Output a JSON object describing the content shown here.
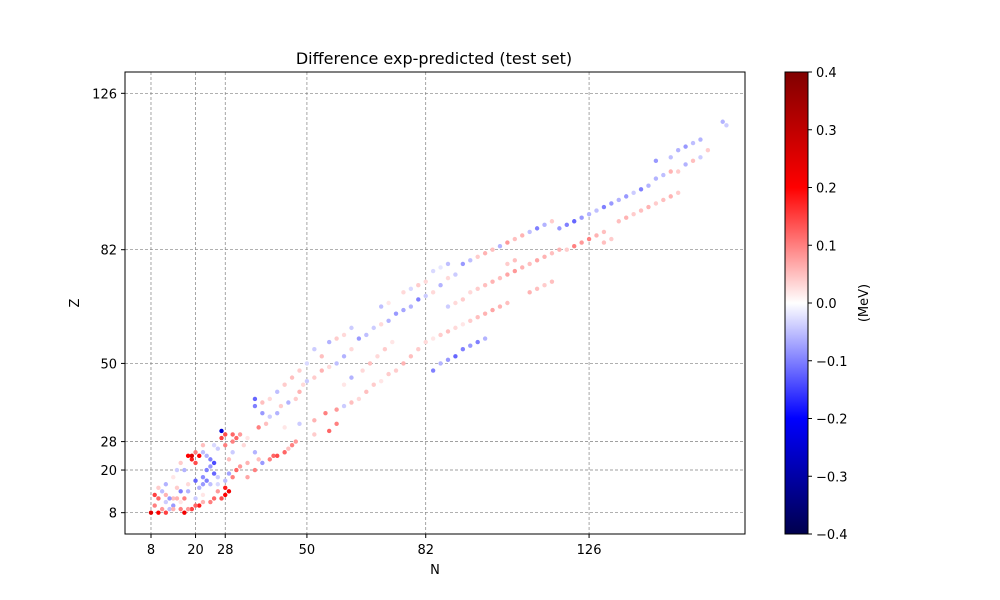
{
  "chart_data": {
    "type": "scatter",
    "title": "Difference exp-predicted (test set)",
    "xlabel": "N",
    "ylabel": "Z",
    "xlim": [
      1,
      168
    ],
    "ylim": [
      2,
      132
    ],
    "xticks": [
      {
        "value": 8,
        "label": "8"
      },
      {
        "value": 20,
        "label": "20"
      },
      {
        "value": 28,
        "label": "28"
      },
      {
        "value": 50,
        "label": "50"
      },
      {
        "value": 82,
        "label": "82"
      },
      {
        "value": 126,
        "label": "126"
      }
    ],
    "yticks": [
      {
        "value": 8,
        "label": "8"
      },
      {
        "value": 20,
        "label": "20"
      },
      {
        "value": 28,
        "label": "28"
      },
      {
        "value": 50,
        "label": "50"
      },
      {
        "value": 82,
        "label": "82"
      },
      {
        "value": 126,
        "label": "126"
      }
    ],
    "grid": true,
    "grid_lines": "magic numbers (8, 20, 28, 50, 82, 126), dashed gray",
    "colorbar": {
      "label": "(MeV)",
      "colormap": "seismic",
      "min": -0.4,
      "max": 0.4,
      "ticks": [
        {
          "value": 0.4,
          "label": "0.4"
        },
        {
          "value": 0.3,
          "label": "0.3"
        },
        {
          "value": 0.2,
          "label": "0.2"
        },
        {
          "value": 0.1,
          "label": "0.1"
        },
        {
          "value": 0.0,
          "label": "0.0"
        },
        {
          "value": -0.1,
          "label": "−0.1"
        },
        {
          "value": -0.2,
          "label": "−0.2"
        },
        {
          "value": -0.3,
          "label": "−0.3"
        },
        {
          "value": -0.4,
          "label": "−0.4"
        }
      ]
    },
    "points": [
      [
        8,
        8,
        0.25
      ],
      [
        10,
        8,
        0.2
      ],
      [
        12,
        8,
        0.15
      ],
      [
        9,
        10,
        0.1
      ],
      [
        11,
        9,
        0.08
      ],
      [
        13,
        9,
        -0.05
      ],
      [
        14,
        10,
        -0.08
      ],
      [
        12,
        11,
        -0.04
      ],
      [
        10,
        12,
        0.12
      ],
      [
        12,
        13,
        0.06
      ],
      [
        14,
        12,
        0.05
      ],
      [
        16,
        11,
        0.02
      ],
      [
        16,
        14,
        -0.1
      ],
      [
        18,
        14,
        -0.06
      ],
      [
        15,
        15,
        0.04
      ],
      [
        18,
        16,
        0.03
      ],
      [
        17,
        8,
        0.22
      ],
      [
        19,
        9,
        0.15
      ],
      [
        21,
        10,
        0.18
      ],
      [
        20,
        12,
        -0.04
      ],
      [
        22,
        13,
        0.02
      ],
      [
        20,
        17,
        -0.12
      ],
      [
        22,
        18,
        -0.09
      ],
      [
        20,
        22,
        0.14
      ],
      [
        19,
        23,
        0.18
      ],
      [
        18,
        24,
        0.2
      ],
      [
        19,
        24,
        0.25
      ],
      [
        21,
        24,
        0.2
      ],
      [
        20,
        25,
        0.1
      ],
      [
        22,
        25,
        -0.05
      ],
      [
        23,
        20,
        -0.1
      ],
      [
        24,
        21,
        -0.08
      ],
      [
        25,
        19,
        -0.12
      ],
      [
        26,
        18,
        -0.04
      ],
      [
        24,
        16,
        -0.05
      ],
      [
        26,
        14,
        0.08
      ],
      [
        27,
        12,
        0.14
      ],
      [
        28,
        13,
        0.2
      ],
      [
        29,
        14,
        0.22
      ],
      [
        28,
        15,
        0.18
      ],
      [
        30,
        18,
        0.1
      ],
      [
        31,
        20,
        0.12
      ],
      [
        32,
        21,
        0.08
      ],
      [
        34,
        22,
        0.06
      ],
      [
        29,
        23,
        0.05
      ],
      [
        30,
        25,
        -0.04
      ],
      [
        28,
        27,
        0.1
      ],
      [
        27,
        29,
        0.15
      ],
      [
        27,
        31,
        -0.25
      ],
      [
        28,
        30,
        0.14
      ],
      [
        30,
        30,
        0.12
      ],
      [
        32,
        30,
        0.08
      ],
      [
        34,
        29,
        0.02
      ],
      [
        33,
        27,
        0.03
      ],
      [
        36,
        25,
        -0.06
      ],
      [
        37,
        23,
        0.05
      ],
      [
        38,
        22,
        -0.08
      ],
      [
        36,
        20,
        0.1
      ],
      [
        34,
        18,
        0.07
      ],
      [
        40,
        23,
        0.1
      ],
      [
        41,
        24,
        0.12
      ],
      [
        42,
        24,
        0.14
      ],
      [
        44,
        25,
        0.12
      ],
      [
        45,
        26,
        0.05
      ],
      [
        46,
        27,
        0.1
      ],
      [
        47,
        28,
        0.08
      ],
      [
        37,
        32,
        0.1
      ],
      [
        39,
        33,
        0.05
      ],
      [
        40,
        35,
        -0.04
      ],
      [
        42,
        36,
        -0.06
      ],
      [
        38,
        36,
        -0.08
      ],
      [
        36,
        38,
        -0.1
      ],
      [
        43,
        38,
        0.04
      ],
      [
        45,
        39,
        -0.06
      ],
      [
        47,
        40,
        0.04
      ],
      [
        48,
        42,
        0.06
      ],
      [
        49,
        44,
        0.03
      ],
      [
        50,
        45,
        -0.04
      ],
      [
        52,
        46,
        0.04
      ],
      [
        54,
        48,
        0.06
      ],
      [
        56,
        49,
        0.03
      ],
      [
        58,
        50,
        -0.05
      ],
      [
        60,
        52,
        -0.06
      ],
      [
        62,
        54,
        0.03
      ],
      [
        44,
        32,
        0.02
      ],
      [
        48,
        33,
        -0.04
      ],
      [
        52,
        34,
        0.06
      ],
      [
        55,
        36,
        0.1
      ],
      [
        58,
        37,
        0.08
      ],
      [
        60,
        38,
        -0.04
      ],
      [
        62,
        39,
        0.05
      ],
      [
        52,
        30,
        0.04
      ],
      [
        56,
        31,
        0.12
      ],
      [
        58,
        33,
        0.1
      ],
      [
        64,
        40,
        0.03
      ],
      [
        66,
        42,
        0.05
      ],
      [
        68,
        44,
        0.04
      ],
      [
        70,
        45,
        0.02
      ],
      [
        72,
        47,
        0.04
      ],
      [
        60,
        44,
        0.02
      ],
      [
        62,
        46,
        -0.06
      ],
      [
        65,
        48,
        0.03
      ],
      [
        67,
        50,
        0.05
      ],
      [
        69,
        52,
        0.03
      ],
      [
        71,
        54,
        0.04
      ],
      [
        73,
        56,
        0.02
      ],
      [
        64,
        57,
        -0.08
      ],
      [
        66,
        58,
        -0.05
      ],
      [
        68,
        60,
        -0.04
      ],
      [
        70,
        61,
        0.03
      ],
      [
        72,
        62,
        -0.06
      ],
      [
        74,
        64,
        -0.08
      ],
      [
        76,
        65,
        -0.07
      ],
      [
        78,
        66,
        -0.06
      ],
      [
        80,
        68,
        -0.1
      ],
      [
        82,
        69,
        -0.04
      ],
      [
        84,
        70,
        0.03
      ],
      [
        86,
        72,
        -0.06
      ],
      [
        88,
        74,
        0.03
      ],
      [
        90,
        75,
        -0.04
      ],
      [
        74,
        48,
        0.04
      ],
      [
        76,
        50,
        0.06
      ],
      [
        78,
        52,
        0.05
      ],
      [
        80,
        54,
        0.04
      ],
      [
        82,
        56,
        0.03
      ],
      [
        84,
        57,
        0.02
      ],
      [
        86,
        58,
        0.04
      ],
      [
        88,
        59,
        0.05
      ],
      [
        90,
        60,
        0.03
      ],
      [
        92,
        61,
        0.02
      ],
      [
        94,
        62,
        0.04
      ],
      [
        96,
        63,
        0.05
      ],
      [
        98,
        64,
        0.06
      ],
      [
        100,
        65,
        0.07
      ],
      [
        102,
        66,
        0.06
      ],
      [
        104,
        67,
        0.05
      ],
      [
        84,
        48,
        -0.1
      ],
      [
        86,
        50,
        -0.06
      ],
      [
        88,
        51,
        -0.08
      ],
      [
        90,
        52,
        -0.12
      ],
      [
        92,
        54,
        -0.1
      ],
      [
        94,
        55,
        -0.08
      ],
      [
        96,
        56,
        -0.1
      ],
      [
        98,
        57,
        -0.06
      ],
      [
        92,
        78,
        -0.08
      ],
      [
        94,
        79,
        -0.05
      ],
      [
        96,
        80,
        0.04
      ],
      [
        98,
        81,
        0.06
      ],
      [
        100,
        82,
        0.05
      ],
      [
        102,
        83,
        -0.06
      ],
      [
        104,
        84,
        0.08
      ],
      [
        106,
        85,
        0.05
      ],
      [
        108,
        86,
        0.06
      ],
      [
        110,
        87,
        -0.05
      ],
      [
        112,
        88,
        -0.1
      ],
      [
        114,
        89,
        -0.06
      ],
      [
        116,
        90,
        0.04
      ],
      [
        94,
        70,
        0.03
      ],
      [
        96,
        71,
        0.04
      ],
      [
        98,
        72,
        0.05
      ],
      [
        100,
        73,
        0.06
      ],
      [
        102,
        74,
        0.05
      ],
      [
        104,
        75,
        0.07
      ],
      [
        106,
        76,
        0.08
      ],
      [
        108,
        77,
        0.06
      ],
      [
        110,
        78,
        0.05
      ],
      [
        112,
        79,
        0.07
      ],
      [
        114,
        80,
        0.06
      ],
      [
        116,
        81,
        0.05
      ],
      [
        118,
        82,
        0.06
      ],
      [
        120,
        82,
        0.04
      ],
      [
        122,
        83,
        0.1
      ],
      [
        124,
        84,
        0.08
      ],
      [
        126,
        85,
        0.1
      ],
      [
        128,
        86,
        0.06
      ],
      [
        130,
        87,
        0.05
      ],
      [
        118,
        88,
        -0.08
      ],
      [
        120,
        89,
        -0.1
      ],
      [
        122,
        90,
        -0.12
      ],
      [
        124,
        91,
        -0.08
      ],
      [
        126,
        92,
        -0.06
      ],
      [
        128,
        93,
        -0.05
      ],
      [
        130,
        94,
        -0.1
      ],
      [
        132,
        95,
        -0.08
      ],
      [
        134,
        96,
        -0.06
      ],
      [
        136,
        97,
        -0.08
      ],
      [
        138,
        98,
        -0.04
      ],
      [
        140,
        99,
        -0.1
      ],
      [
        142,
        100,
        -0.06
      ],
      [
        134,
        90,
        0.05
      ],
      [
        136,
        91,
        0.06
      ],
      [
        138,
        92,
        0.04
      ],
      [
        140,
        93,
        0.05
      ],
      [
        142,
        94,
        0.06
      ],
      [
        144,
        95,
        0.04
      ],
      [
        146,
        96,
        0.05
      ],
      [
        148,
        97,
        0.06
      ],
      [
        150,
        98,
        0.04
      ],
      [
        130,
        84,
        0.05
      ],
      [
        132,
        85,
        0.04
      ],
      [
        144,
        102,
        -0.06
      ],
      [
        146,
        103,
        -0.05
      ],
      [
        148,
        104,
        0.06
      ],
      [
        150,
        104,
        0.04
      ],
      [
        152,
        106,
        -0.06
      ],
      [
        154,
        107,
        0.05
      ],
      [
        156,
        108,
        -0.04
      ],
      [
        158,
        110,
        0.04
      ],
      [
        144,
        107,
        -0.08
      ],
      [
        148,
        108,
        -0.05
      ],
      [
        150,
        110,
        -0.06
      ],
      [
        152,
        111,
        -0.08
      ],
      [
        154,
        112,
        -0.05
      ],
      [
        156,
        113,
        -0.06
      ],
      [
        162,
        118,
        -0.06
      ],
      [
        163,
        117,
        -0.04
      ],
      [
        88,
        66,
        -0.04
      ],
      [
        90,
        67,
        0.03
      ],
      [
        92,
        68,
        0.04
      ],
      [
        84,
        76,
        -0.03
      ],
      [
        86,
        77,
        -0.02
      ],
      [
        88,
        78,
        -0.05
      ],
      [
        104,
        78,
        0.04
      ],
      [
        106,
        79,
        0.05
      ],
      [
        110,
        70,
        0.06
      ],
      [
        112,
        71,
        0.05
      ],
      [
        114,
        72,
        0.04
      ],
      [
        116,
        73,
        0.05
      ],
      [
        70,
        66,
        -0.05
      ],
      [
        72,
        67,
        0.02
      ],
      [
        76,
        70,
        0.03
      ],
      [
        78,
        71,
        -0.03
      ],
      [
        80,
        72,
        0.04
      ],
      [
        82,
        73,
        0.03
      ],
      [
        56,
        56,
        -0.06
      ],
      [
        58,
        57,
        0.04
      ],
      [
        60,
        58,
        0.03
      ],
      [
        62,
        60,
        -0.04
      ],
      [
        54,
        52,
        0.05
      ],
      [
        52,
        54,
        -0.04
      ],
      [
        50,
        50,
        -0.03
      ],
      [
        48,
        48,
        0.04
      ],
      [
        46,
        46,
        0.05
      ],
      [
        44,
        44,
        0.04
      ],
      [
        42,
        42,
        -0.05
      ],
      [
        40,
        40,
        0.03
      ],
      [
        38,
        39,
        0.05
      ],
      [
        36,
        40,
        -0.12
      ],
      [
        25,
        22,
        -0.14
      ],
      [
        24,
        23,
        -0.1
      ],
      [
        23,
        24,
        -0.06
      ],
      [
        22,
        27,
        0.05
      ],
      [
        25,
        27,
        -0.03
      ],
      [
        26,
        26,
        -0.04
      ],
      [
        30,
        28,
        0.1
      ],
      [
        31,
        29,
        0.12
      ],
      [
        17,
        20,
        -0.06
      ],
      [
        16,
        22,
        0.04
      ],
      [
        15,
        20,
        -0.04
      ],
      [
        14,
        18,
        0.02
      ],
      [
        12,
        16,
        -0.06
      ],
      [
        11,
        14,
        -0.05
      ],
      [
        10,
        15,
        0.04
      ],
      [
        9,
        13,
        0.15
      ],
      [
        13,
        12,
        -0.08
      ],
      [
        15,
        12,
        0.06
      ],
      [
        17,
        12,
        0.1
      ],
      [
        21,
        15,
        -0.06
      ],
      [
        22,
        16,
        -0.08
      ],
      [
        23,
        17,
        -0.1
      ],
      [
        24,
        11,
        0.1
      ],
      [
        25,
        12,
        0.12
      ],
      [
        14,
        9,
        0.06
      ],
      [
        16,
        9,
        0.1
      ],
      [
        18,
        9,
        0.08
      ],
      [
        20,
        10,
        0.12
      ],
      [
        22,
        11,
        0.06
      ],
      [
        26,
        16,
        -0.03
      ],
      [
        28,
        17,
        -0.05
      ],
      [
        29,
        19,
        -0.07
      ]
    ]
  }
}
